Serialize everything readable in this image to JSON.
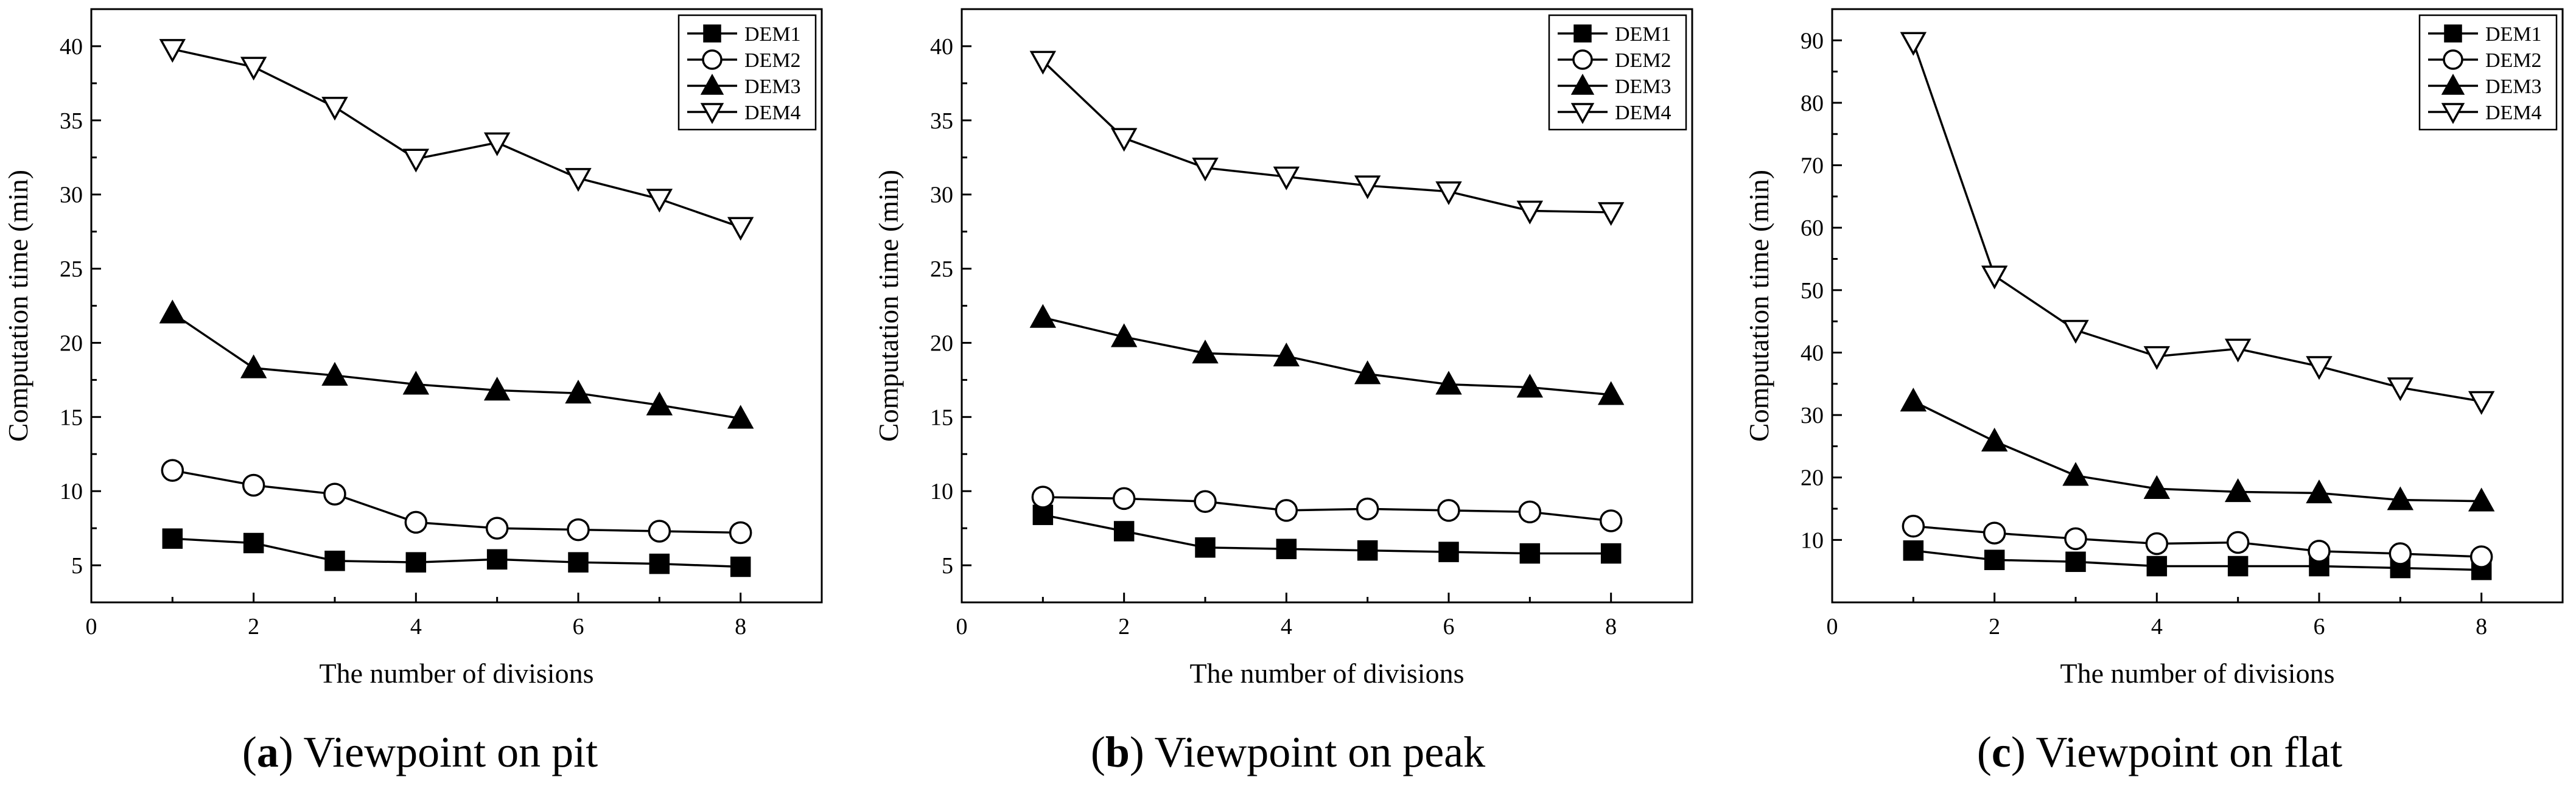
{
  "figure": {
    "panels": [
      {
        "letter": "a",
        "caption_text": "Viewpoint on pit"
      },
      {
        "letter": "b",
        "caption_text": "Viewpoint on peak"
      },
      {
        "letter": "c",
        "caption_text": "Viewpoint on flat"
      }
    ]
  },
  "colors": {
    "axis": "#000000",
    "line": "#000000",
    "marker_fill_filled": "#000000",
    "marker_fill_open": "#ffffff"
  },
  "chart_data": [
    {
      "type": "line",
      "title": "",
      "xlabel": "The number of divisions",
      "ylabel": "Computation time (min)",
      "xlim": [
        0,
        9
      ],
      "ylim": [
        2.5,
        42.5
      ],
      "xticks": [
        0,
        2,
        4,
        6,
        8
      ],
      "yticks": [
        5,
        10,
        15,
        20,
        25,
        30,
        35,
        40
      ],
      "x": [
        1,
        2,
        3,
        4,
        5,
        6,
        7,
        8
      ],
      "legend_position": "top-right",
      "series": [
        {
          "name": "DEM1",
          "marker": "square",
          "values": [
            6.8,
            6.5,
            5.3,
            5.2,
            5.4,
            5.2,
            5.1,
            4.9
          ]
        },
        {
          "name": "DEM2",
          "marker": "circle",
          "values": [
            11.4,
            10.4,
            9.8,
            7.9,
            7.5,
            7.4,
            7.3,
            7.2
          ]
        },
        {
          "name": "DEM3",
          "marker": "triangle-up",
          "values": [
            22.0,
            18.3,
            17.8,
            17.2,
            16.8,
            16.6,
            15.8,
            14.9
          ]
        },
        {
          "name": "DEM4",
          "marker": "triangle-down",
          "values": [
            39.8,
            38.6,
            35.9,
            32.4,
            33.5,
            31.1,
            29.7,
            27.8
          ]
        }
      ]
    },
    {
      "type": "line",
      "title": "",
      "xlabel": "The number of divisions",
      "ylabel": "Computation time (min)",
      "xlim": [
        0,
        9
      ],
      "ylim": [
        2.5,
        42.5
      ],
      "xticks": [
        0,
        2,
        4,
        6,
        8
      ],
      "yticks": [
        5,
        10,
        15,
        20,
        25,
        30,
        35,
        40
      ],
      "x": [
        1,
        2,
        3,
        4,
        5,
        6,
        7,
        8
      ],
      "legend_position": "top-right",
      "series": [
        {
          "name": "DEM1",
          "marker": "square",
          "values": [
            8.4,
            7.3,
            6.2,
            6.1,
            6.0,
            5.9,
            5.8,
            5.8
          ]
        },
        {
          "name": "DEM2",
          "marker": "circle",
          "values": [
            9.6,
            9.5,
            9.3,
            8.7,
            8.8,
            8.7,
            8.6,
            8.0
          ]
        },
        {
          "name": "DEM3",
          "marker": "triangle-up",
          "values": [
            21.7,
            20.4,
            19.3,
            19.1,
            17.9,
            17.2,
            17.0,
            16.5
          ]
        },
        {
          "name": "DEM4",
          "marker": "triangle-down",
          "values": [
            39.0,
            33.8,
            31.8,
            31.2,
            30.6,
            30.2,
            28.9,
            28.8
          ]
        }
      ]
    },
    {
      "type": "line",
      "title": "",
      "xlabel": "The number of divisions",
      "ylabel": "Computation time (min)",
      "xlim": [
        0,
        9
      ],
      "ylim": [
        0,
        95
      ],
      "xticks": [
        0,
        2,
        4,
        6,
        8
      ],
      "yticks": [
        10,
        20,
        30,
        40,
        50,
        60,
        70,
        80,
        90
      ],
      "x": [
        1,
        2,
        3,
        4,
        5,
        6,
        7,
        8
      ],
      "legend_position": "top-right",
      "series": [
        {
          "name": "DEM1",
          "marker": "square",
          "values": [
            8.3,
            6.8,
            6.5,
            5.8,
            5.8,
            5.8,
            5.5,
            5.2
          ]
        },
        {
          "name": "DEM2",
          "marker": "circle",
          "values": [
            12.2,
            11.1,
            10.2,
            9.4,
            9.6,
            8.2,
            7.8,
            7.3
          ]
        },
        {
          "name": "DEM3",
          "marker": "triangle-up",
          "values": [
            32.2,
            25.8,
            20.3,
            18.2,
            17.7,
            17.5,
            16.4,
            16.2
          ]
        },
        {
          "name": "DEM4",
          "marker": "triangle-down",
          "values": [
            89.7,
            52.3,
            43.6,
            39.4,
            40.6,
            37.8,
            34.4,
            32.2
          ]
        }
      ]
    }
  ]
}
